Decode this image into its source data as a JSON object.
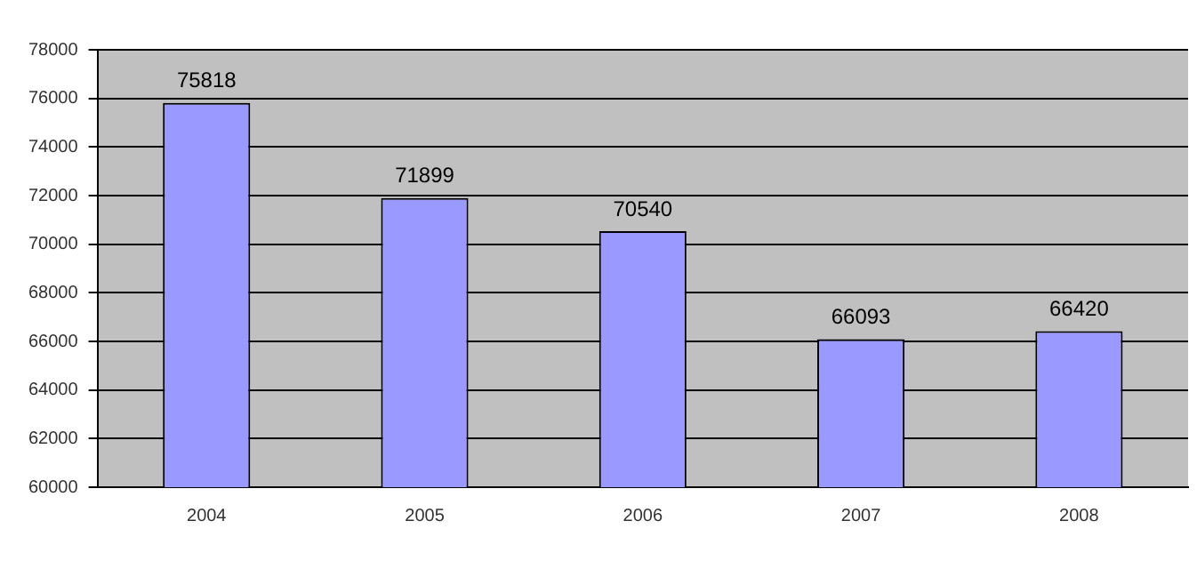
{
  "chart_data": {
    "type": "bar",
    "categories": [
      "2004",
      "2005",
      "2006",
      "2007",
      "2008"
    ],
    "values": [
      75818,
      71899,
      70540,
      66093,
      66420
    ],
    "color": "#9999ff",
    "ylim": [
      60000,
      78000
    ],
    "yticks": [
      60000,
      62000,
      64000,
      66000,
      68000,
      70000,
      72000,
      74000,
      76000,
      78000
    ],
    "grid": "y",
    "data_labels": true,
    "legend": false
  }
}
